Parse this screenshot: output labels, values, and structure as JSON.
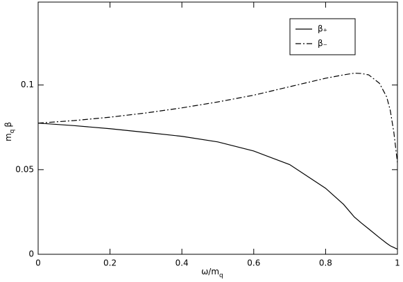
{
  "chart_data": {
    "type": "line",
    "xlabel": [
      "ω/m",
      "q"
    ],
    "ylabel": [
      "m",
      "q",
      "β"
    ],
    "x": [
      0,
      0.1,
      0.2,
      0.3,
      0.4,
      0.5,
      0.6,
      0.7,
      0.8,
      0.85,
      0.88,
      0.9,
      0.92,
      0.95,
      0.97,
      0.98,
      0.99,
      1
    ],
    "series": [
      {
        "name": "β₊",
        "color": "#000000",
        "linestyle": "solid",
        "values": [
          0.0775,
          0.076,
          0.0742,
          0.072,
          0.0697,
          0.0664,
          0.061,
          0.053,
          0.039,
          0.0295,
          0.022,
          0.0184,
          0.015,
          0.0098,
          0.0065,
          0.005,
          0.004,
          0.003
        ]
      },
      {
        "name": "β₋",
        "color": "#000000",
        "linestyle": "dashdot",
        "values": [
          0.0775,
          0.079,
          0.081,
          0.0835,
          0.0865,
          0.09,
          0.094,
          0.099,
          0.104,
          0.106,
          0.107,
          0.1068,
          0.106,
          0.101,
          0.093,
          0.085,
          0.072,
          0.054
        ]
      }
    ],
    "xlim": [
      0,
      1
    ],
    "ylim": [
      0,
      0.149
    ],
    "xticks": [
      0,
      0.2,
      0.4,
      0.6,
      0.8,
      1
    ],
    "yticks": [
      0,
      0.05,
      0.1
    ],
    "legend": "upper-right"
  }
}
